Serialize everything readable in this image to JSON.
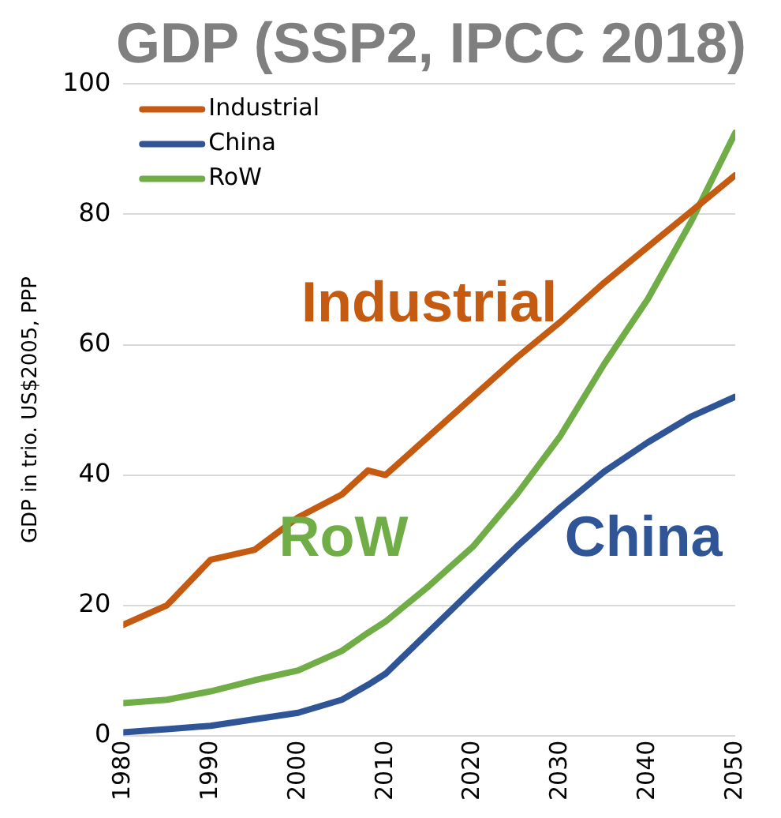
{
  "chart_data": {
    "type": "line",
    "title": "GDP (SSP2, IPCC 2018)",
    "ylabel": "GDP in trio. US$2005, PPP",
    "x": [
      1980,
      1985,
      1990,
      1995,
      2000,
      2005,
      2008,
      2010,
      2015,
      2020,
      2025,
      2030,
      2035,
      2040,
      2045,
      2050
    ],
    "series": [
      {
        "name": "Industrial",
        "color": "#c55a11",
        "values": [
          17,
          20,
          27,
          28.5,
          33.5,
          37,
          40.7,
          40,
          46,
          52,
          58,
          63.5,
          69.5,
          75,
          80.5,
          86
        ]
      },
      {
        "name": "China",
        "color": "#2f5597",
        "values": [
          0.5,
          1,
          1.5,
          2.5,
          3.5,
          5.5,
          7.8,
          9.5,
          16,
          22.5,
          29,
          35,
          40.5,
          45,
          49,
          52
        ]
      },
      {
        "name": "RoW",
        "color": "#70ad47",
        "values": [
          5,
          5.5,
          6.8,
          8.5,
          10,
          13,
          15.8,
          17.5,
          23,
          29,
          37,
          46,
          57,
          67,
          79,
          92.5
        ]
      }
    ],
    "xlim": [
      1980,
      2050
    ],
    "xticks": [
      1980,
      1990,
      2000,
      2010,
      2020,
      2030,
      2040,
      2050
    ],
    "ylim": [
      0,
      100
    ],
    "yticks": [
      0,
      20,
      40,
      60,
      80,
      100
    ],
    "grid": "y",
    "legend": "top left",
    "marker": "none",
    "line_style": "solid",
    "annotations": [
      "Industrial",
      "China",
      "RoW"
    ]
  }
}
